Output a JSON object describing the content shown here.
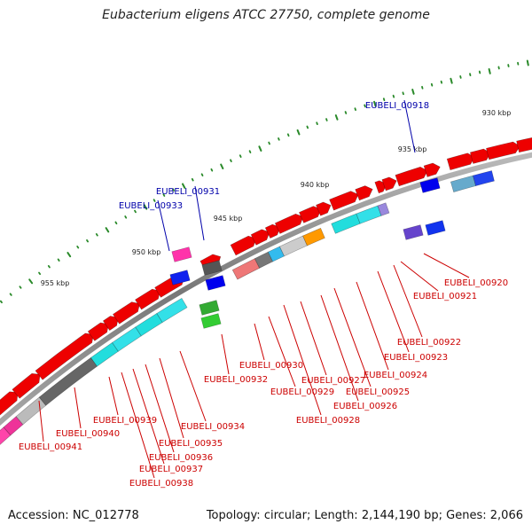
{
  "title": "Eubacterium eligens ATCC 27750, complete genome",
  "footer": {
    "accession_label": "Accession:",
    "accession": "NC_012778",
    "topology_label": "Topology:",
    "topology": "circular",
    "length_label": "Length:",
    "length": "2,144,190 bp",
    "genes_label": "Genes:",
    "genes": "2,066"
  },
  "scale_ticks": [
    {
      "label": "930 kbp"
    },
    {
      "label": "935 kbp"
    },
    {
      "label": "940 kbp"
    },
    {
      "label": "945 kbp"
    },
    {
      "label": "950 kbp"
    },
    {
      "label": "955 kbp"
    }
  ],
  "gene_labels": [
    {
      "id": "EUBELI_00918",
      "color": "#0000aa"
    },
    {
      "id": "EUBELI_00920",
      "color": "#cc0000"
    },
    {
      "id": "EUBELI_00921",
      "color": "#cc0000"
    },
    {
      "id": "EUBELI_00922",
      "color": "#cc0000"
    },
    {
      "id": "EUBELI_00923",
      "color": "#cc0000"
    },
    {
      "id": "EUBELI_00924",
      "color": "#cc0000"
    },
    {
      "id": "EUBELI_00925",
      "color": "#cc0000"
    },
    {
      "id": "EUBELI_00926",
      "color": "#cc0000"
    },
    {
      "id": "EUBELI_00927",
      "color": "#cc0000"
    },
    {
      "id": "EUBELI_00928",
      "color": "#cc0000"
    },
    {
      "id": "EUBELI_00929",
      "color": "#cc0000"
    },
    {
      "id": "EUBELI_00930",
      "color": "#cc0000"
    },
    {
      "id": "EUBELI_00931",
      "color": "#0000aa"
    },
    {
      "id": "EUBELI_00932",
      "color": "#cc0000"
    },
    {
      "id": "EUBELI_00933",
      "color": "#0000aa"
    },
    {
      "id": "EUBELI_00934",
      "color": "#cc0000"
    },
    {
      "id": "EUBELI_00935",
      "color": "#cc0000"
    },
    {
      "id": "EUBELI_00936",
      "color": "#cc0000"
    },
    {
      "id": "EUBELI_00937",
      "color": "#cc0000"
    },
    {
      "id": "EUBELI_00938",
      "color": "#cc0000"
    },
    {
      "id": "EUBELI_00939",
      "color": "#cc0000"
    },
    {
      "id": "EUBELI_00940",
      "color": "#cc0000"
    },
    {
      "id": "EUBELI_00941",
      "color": "#cc0000"
    }
  ],
  "colors": {
    "forward_gene": "#ee0000",
    "reverse_gene": "#0000dd",
    "backbone": "#888888",
    "tick": "#2a8a2a"
  }
}
